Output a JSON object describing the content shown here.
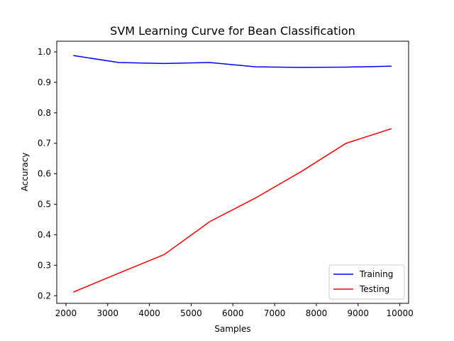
{
  "chart_data": {
    "type": "line",
    "title": "SVM Learning Curve for Bean Classification",
    "xlabel": "Samples",
    "ylabel": "Accuracy",
    "xlim": [
      1780,
      10210
    ],
    "ylim": [
      0.175,
      1.035
    ],
    "xticks": [
      2000,
      3000,
      4000,
      5000,
      6000,
      7000,
      8000,
      9000,
      10000
    ],
    "xtick_labels": [
      "2000",
      "3000",
      "4000",
      "5000",
      "6000",
      "7000",
      "8000",
      "9000",
      "10000"
    ],
    "yticks": [
      0.2,
      0.3,
      0.4,
      0.5,
      0.6,
      0.7,
      0.8,
      0.9,
      1.0
    ],
    "ytick_labels": [
      "0.2",
      "0.3",
      "0.4",
      "0.5",
      "0.6",
      "0.7",
      "0.8",
      "0.9",
      "1.0"
    ],
    "x": [
      2177,
      3266,
      4355,
      5444,
      6533,
      7622,
      8711,
      9800
    ],
    "series": [
      {
        "name": "Training",
        "color": "#0000ff",
        "values": [
          0.988,
          0.965,
          0.962,
          0.965,
          0.951,
          0.949,
          0.95,
          0.953
        ]
      },
      {
        "name": "Testing",
        "color": "#ff0000",
        "values": [
          0.212,
          0.274,
          0.335,
          0.443,
          0.52,
          0.606,
          0.7,
          0.748
        ]
      }
    ],
    "grid": false,
    "legend_position": "lower-right"
  }
}
